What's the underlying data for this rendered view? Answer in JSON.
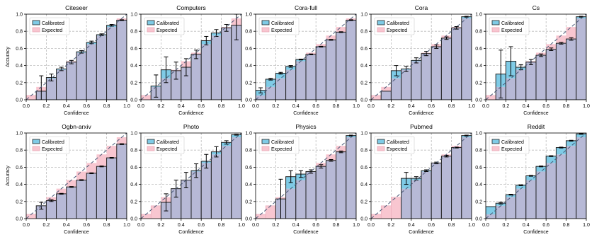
{
  "figure": {
    "ylabel": "Accuracy",
    "xlabel": "Confidence",
    "legend": [
      "Calibrated",
      "Expected"
    ],
    "colors": {
      "calibrated": "#7fcbe6",
      "expected": "#f8c6d0",
      "overlap": "#b7b9d6",
      "grid": "#bbbbbb",
      "diagonal": "#4a5a78",
      "axis": "#000000"
    },
    "x_ticks": [
      "0.0",
      "0.2",
      "0.4",
      "0.6",
      "0.8",
      "1.0"
    ],
    "y_ticks": [
      "0.0",
      "0.2",
      "0.4",
      "0.6",
      "0.8",
      "1.0"
    ]
  },
  "chart_data": [
    {
      "type": "bar",
      "title": "Citeseer",
      "xlim": [
        0,
        1
      ],
      "ylim": [
        0,
        1
      ],
      "x": [
        0.05,
        0.15,
        0.25,
        0.35,
        0.45,
        0.55,
        0.65,
        0.75,
        0.85,
        0.95
      ],
      "series": [
        {
          "name": "Calibrated",
          "values": [
            null,
            0.1,
            0.26,
            0.36,
            0.44,
            0.56,
            0.67,
            0.76,
            0.87,
            0.93
          ],
          "errors": [
            null,
            0.18,
            0.04,
            0.02,
            0.02,
            0.015,
            0.015,
            0.01,
            0.01,
            0.005
          ]
        },
        {
          "name": "Expected",
          "values": [
            0.05,
            0.15,
            0.25,
            0.35,
            0.45,
            0.55,
            0.65,
            0.75,
            0.85,
            0.95
          ]
        }
      ]
    },
    {
      "type": "bar",
      "title": "Computers",
      "xlim": [
        0,
        1
      ],
      "ylim": [
        0,
        1
      ],
      "x": [
        0.05,
        0.15,
        0.25,
        0.35,
        0.45,
        0.55,
        0.65,
        0.75,
        0.85,
        0.95
      ],
      "series": [
        {
          "name": "Calibrated",
          "values": [
            null,
            0.16,
            0.35,
            0.34,
            0.38,
            0.53,
            0.69,
            0.78,
            0.84,
            0.87
          ],
          "errors": [
            null,
            0.13,
            0.15,
            0.1,
            0.1,
            0.05,
            0.05,
            0.04,
            0.04,
            0.17
          ]
        },
        {
          "name": "Expected",
          "values": [
            0.05,
            0.15,
            0.25,
            0.35,
            0.45,
            0.55,
            0.65,
            0.75,
            0.85,
            0.95
          ]
        }
      ]
    },
    {
      "type": "bar",
      "title": "Cora-full",
      "xlim": [
        0,
        1
      ],
      "ylim": [
        0,
        1
      ],
      "x": [
        0.05,
        0.15,
        0.25,
        0.35,
        0.45,
        0.55,
        0.65,
        0.75,
        0.85,
        0.95
      ],
      "series": [
        {
          "name": "Calibrated",
          "values": [
            0.11,
            0.24,
            0.31,
            0.39,
            0.47,
            0.53,
            0.62,
            0.7,
            0.79,
            0.93
          ],
          "errors": [
            0.03,
            0.01,
            0.01,
            0.01,
            0.005,
            0.005,
            0.005,
            0.005,
            0.005,
            0.005
          ]
        },
        {
          "name": "Expected",
          "values": [
            0.05,
            0.15,
            0.25,
            0.35,
            0.45,
            0.55,
            0.65,
            0.75,
            0.85,
            0.95
          ]
        }
      ]
    },
    {
      "type": "bar",
      "title": "Cora",
      "xlim": [
        0,
        1
      ],
      "ylim": [
        0,
        1
      ],
      "x": [
        0.05,
        0.15,
        0.25,
        0.35,
        0.45,
        0.55,
        0.65,
        0.75,
        0.85,
        0.95
      ],
      "series": [
        {
          "name": "Calibrated",
          "values": [
            null,
            0.1,
            0.34,
            0.36,
            0.46,
            0.54,
            0.62,
            0.72,
            0.84,
            0.97
          ],
          "errors": [
            null,
            null,
            0.06,
            0.03,
            0.03,
            0.025,
            0.02,
            0.015,
            0.015,
            0.005
          ]
        },
        {
          "name": "Expected",
          "values": [
            0.05,
            0.15,
            0.25,
            0.35,
            0.45,
            0.55,
            0.65,
            0.75,
            0.85,
            0.95
          ]
        }
      ]
    },
    {
      "type": "bar",
      "title": "Cs",
      "xlim": [
        0,
        1
      ],
      "ylim": [
        0,
        1
      ],
      "x": [
        0.05,
        0.15,
        0.25,
        0.35,
        0.45,
        0.55,
        0.65,
        0.75,
        0.85,
        0.95
      ],
      "series": [
        {
          "name": "Calibrated",
          "values": [
            null,
            0.3,
            0.45,
            0.38,
            0.44,
            0.52,
            0.59,
            0.66,
            0.71,
            0.97
          ],
          "errors": [
            null,
            0.28,
            0.17,
            0.03,
            0.03,
            0.015,
            0.015,
            0.01,
            0.015,
            0.005
          ]
        },
        {
          "name": "Expected",
          "values": [
            0.05,
            0.15,
            0.25,
            0.35,
            0.45,
            0.55,
            0.65,
            0.75,
            0.85,
            0.95
          ]
        }
      ]
    },
    {
      "type": "bar",
      "title": "Ogbn-arxiv",
      "xlim": [
        0,
        1
      ],
      "ylim": [
        0,
        1
      ],
      "x": [
        0.05,
        0.15,
        0.25,
        0.35,
        0.45,
        0.55,
        0.65,
        0.75,
        0.85,
        0.95
      ],
      "series": [
        {
          "name": "Calibrated",
          "values": [
            null,
            0.15,
            0.21,
            0.29,
            0.37,
            0.45,
            0.53,
            0.61,
            0.71,
            0.87
          ],
          "errors": [
            null,
            0.04,
            0.01,
            0.005,
            0.005,
            0.005,
            0.005,
            0.005,
            0.005,
            0.005
          ]
        },
        {
          "name": "Expected",
          "values": [
            0.05,
            0.15,
            0.25,
            0.35,
            0.45,
            0.55,
            0.65,
            0.75,
            0.85,
            0.95
          ]
        }
      ]
    },
    {
      "type": "bar",
      "title": "Photo",
      "xlim": [
        0,
        1
      ],
      "ylim": [
        0,
        1
      ],
      "x": [
        0.05,
        0.15,
        0.25,
        0.35,
        0.45,
        0.55,
        0.65,
        0.75,
        0.85,
        0.95
      ],
      "series": [
        {
          "name": "Calibrated",
          "values": [
            null,
            null,
            0.19,
            0.35,
            0.45,
            0.56,
            0.67,
            0.78,
            0.89,
            0.98
          ],
          "errors": [
            null,
            null,
            0.1,
            0.1,
            0.09,
            0.08,
            0.08,
            0.06,
            0.02,
            0.005
          ]
        },
        {
          "name": "Expected",
          "values": [
            0.05,
            0.15,
            0.25,
            0.35,
            0.45,
            0.55,
            0.65,
            0.75,
            0.85,
            0.95
          ]
        }
      ]
    },
    {
      "type": "bar",
      "title": "Physics",
      "xlim": [
        0,
        1
      ],
      "ylim": [
        0,
        1
      ],
      "x": [
        0.05,
        0.15,
        0.25,
        0.35,
        0.45,
        0.55,
        0.65,
        0.75,
        0.85,
        0.95
      ],
      "series": [
        {
          "name": "Calibrated",
          "values": [
            null,
            null,
            0.23,
            0.49,
            0.52,
            0.55,
            0.61,
            0.68,
            0.78,
            0.97
          ],
          "errors": [
            null,
            null,
            0.23,
            0.07,
            0.04,
            0.02,
            0.02,
            0.01,
            0.01,
            0.005
          ]
        },
        {
          "name": "Expected",
          "values": [
            0.05,
            0.15,
            0.25,
            0.35,
            0.45,
            0.55,
            0.65,
            0.75,
            0.85,
            0.95
          ]
        }
      ]
    },
    {
      "type": "bar",
      "title": "Pubmed",
      "xlim": [
        0,
        1
      ],
      "ylim": [
        0,
        1
      ],
      "x": [
        0.05,
        0.15,
        0.25,
        0.35,
        0.45,
        0.55,
        0.65,
        0.75,
        0.85,
        0.95
      ],
      "series": [
        {
          "name": "Calibrated",
          "values": [
            null,
            null,
            null,
            0.47,
            0.47,
            0.56,
            0.65,
            0.73,
            0.83,
            0.97
          ],
          "errors": [
            null,
            null,
            null,
            0.07,
            0.02,
            0.01,
            0.01,
            0.01,
            0.005,
            0.005
          ]
        },
        {
          "name": "Expected",
          "values": [
            0.05,
            0.15,
            0.25,
            0.35,
            0.45,
            0.55,
            0.65,
            0.75,
            0.85,
            0.95
          ]
        }
      ]
    },
    {
      "type": "bar",
      "title": "Reddit",
      "xlim": [
        0,
        1
      ],
      "ylim": [
        0,
        1
      ],
      "x": [
        0.05,
        0.15,
        0.25,
        0.35,
        0.45,
        0.55,
        0.65,
        0.75,
        0.85,
        0.95
      ],
      "series": [
        {
          "name": "Calibrated",
          "values": [
            0.14,
            0.18,
            0.28,
            0.39,
            0.5,
            0.61,
            0.73,
            0.83,
            0.91,
            0.99
          ],
          "errors": [
            null,
            0.01,
            0.005,
            0.005,
            0.005,
            0.005,
            0.005,
            0.005,
            0.005,
            0.005
          ]
        },
        {
          "name": "Expected",
          "values": [
            0.05,
            0.15,
            0.25,
            0.35,
            0.45,
            0.55,
            0.65,
            0.75,
            0.85,
            0.95
          ]
        }
      ]
    }
  ]
}
